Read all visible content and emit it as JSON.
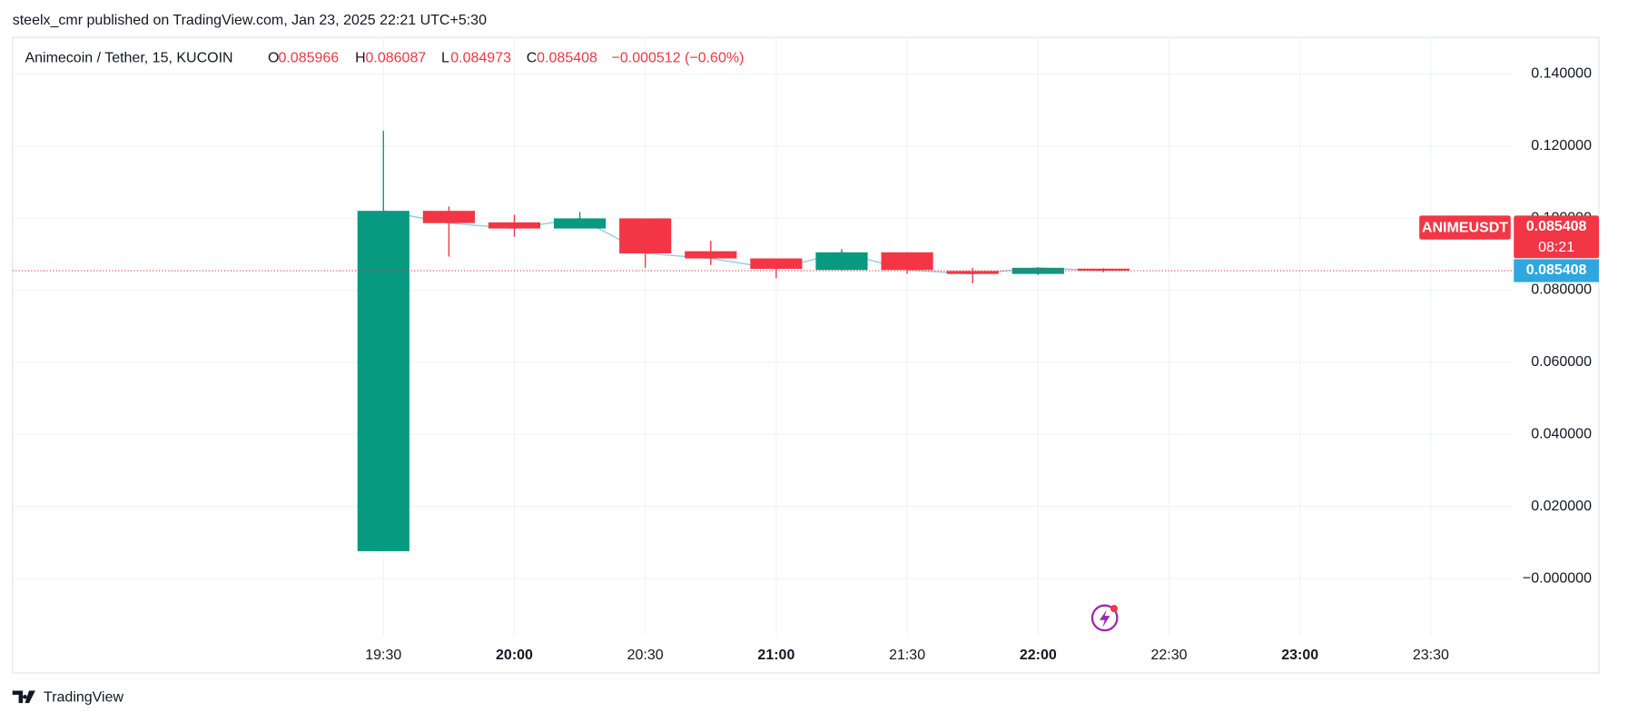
{
  "published": "steelx_cmr published on TradingView.com, Jan 23, 2025 22:21 UTC+5:30",
  "logo_text": "TradingView",
  "chart_data": {
    "type": "candlestick",
    "title": "Animecoin / Tether, 15, KUCOIN",
    "ohlc_labels": [
      "O",
      "H",
      "L",
      "C"
    ],
    "change": "−0.000512 (−0.60%)",
    "symbol": "ANIMEUSDT",
    "countdown": "08:21",
    "x": [
      "19:30",
      "19:45",
      "20:00",
      "20:15",
      "20:30",
      "20:45",
      "21:00",
      "21:15",
      "21:30",
      "21:45",
      "22:00",
      "22:15"
    ],
    "open": [
      0.0076,
      0.102,
      0.0988,
      0.0971,
      0.0999,
      0.0908,
      0.0888,
      0.0856,
      0.0905,
      0.0853,
      0.0845,
      0.085966
    ],
    "high": [
      0.1242,
      0.1032,
      0.1009,
      0.1017,
      0.0999,
      0.0937,
      0.0888,
      0.0914,
      0.0905,
      0.0862,
      0.0864,
      0.086087
    ],
    "low": [
      0.0076,
      0.0893,
      0.0948,
      0.0971,
      0.0862,
      0.087,
      0.0833,
      0.0853,
      0.0845,
      0.0819,
      0.0842,
      0.084973
    ],
    "close": [
      0.102,
      0.0986,
      0.0971,
      0.0999,
      0.0902,
      0.0888,
      0.0859,
      0.0905,
      0.0856,
      0.0845,
      0.0862,
      0.085408
    ],
    "up_color": "#089981",
    "down_color": "#f23645",
    "line_color": "#8fcbe6",
    "last_price_color": "#2ea7e0",
    "xlim": [
      "18:05",
      "23:49"
    ],
    "xticks": [
      "19:30",
      "20:00",
      "20:30",
      "21:00",
      "21:30",
      "22:00",
      "22:30",
      "23:00",
      "23:30"
    ],
    "ylim": [
      -0.0158,
      0.1501
    ],
    "yticks": [
      {
        "value": 0,
        "label": "−0.000000"
      },
      {
        "value": 0.02,
        "label": "0.020000"
      },
      {
        "value": 0.04,
        "label": "0.040000"
      },
      {
        "value": 0.06,
        "label": "0.060000"
      },
      {
        "value": 0.08,
        "label": "0.080000"
      },
      {
        "value": 0.1,
        "label": "0.100000"
      },
      {
        "value": 0.12,
        "label": "0.120000"
      },
      {
        "value": 0.14,
        "label": "0.140000"
      }
    ],
    "grid": true
  }
}
